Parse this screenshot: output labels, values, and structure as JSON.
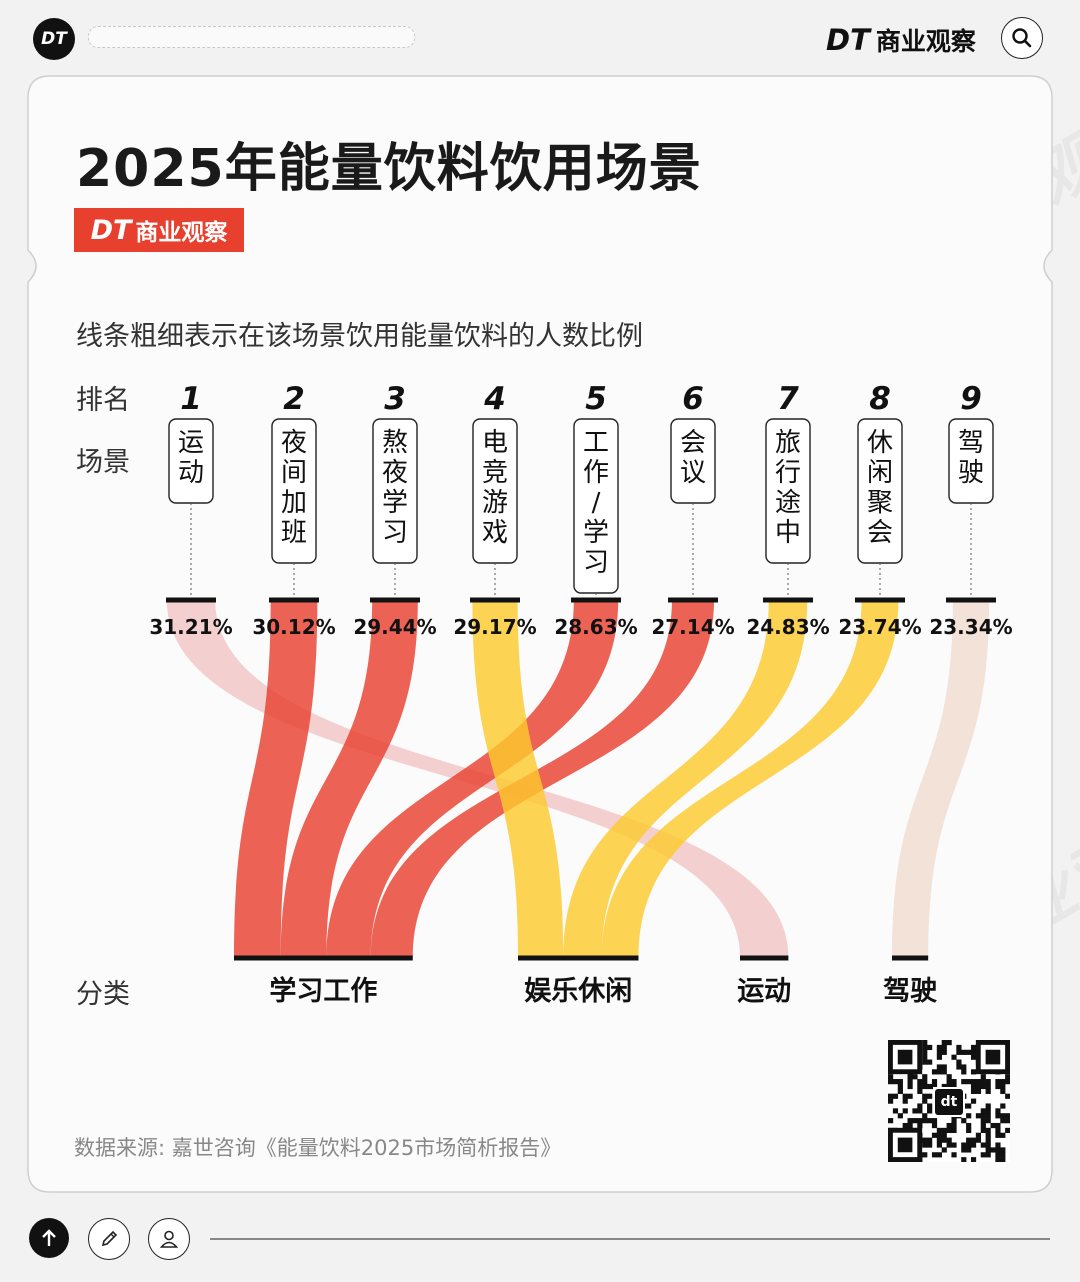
{
  "header": {
    "logo_text": "DT",
    "brand_dt": "DT",
    "brand_name": "商业观察"
  },
  "title": "2025年能量饮料饮用场景",
  "badge": {
    "dt": "DT",
    "name": "商业观察"
  },
  "subtitle": "线条粗细表示在该场景饮用能量饮料的人数比例",
  "labels": {
    "rank": "排名",
    "scene": "场景",
    "category": "分类"
  },
  "source": "数据来源: 嘉世咨询《能量饮料2025市场简析报告》",
  "qr_center": "dt",
  "watermark": "DT商业观察",
  "colors": {
    "study_work": "#e8412f",
    "leisure": "#fcc92d",
    "sport": "#f2c4c4",
    "driving": "#efdcd0"
  },
  "chart_data": {
    "type": "sankey",
    "title": "2025年能量饮料饮用场景",
    "value_unit": "%",
    "scenes": [
      {
        "rank": "1",
        "scene": "运动",
        "value": 31.21,
        "label": "31.21%",
        "category": "运动"
      },
      {
        "rank": "2",
        "scene": "夜间加班",
        "value": 30.12,
        "label": "30.12%",
        "category": "学习工作"
      },
      {
        "rank": "3",
        "scene": "熬夜学习",
        "value": 29.44,
        "label": "29.44%",
        "category": "学习工作"
      },
      {
        "rank": "4",
        "scene": "电竞游戏",
        "value": 29.17,
        "label": "29.17%",
        "category": "娱乐休闲"
      },
      {
        "rank": "5",
        "scene": "工作/学习",
        "value": 28.63,
        "label": "28.63%",
        "category": "学习工作"
      },
      {
        "rank": "6",
        "scene": "会议",
        "value": 27.14,
        "label": "27.14%",
        "category": "学习工作"
      },
      {
        "rank": "7",
        "scene": "旅行途中",
        "value": 24.83,
        "label": "24.83%",
        "category": "娱乐休闲"
      },
      {
        "rank": "8",
        "scene": "休闲聚会",
        "value": 23.74,
        "label": "23.74%",
        "category": "娱乐休闲"
      },
      {
        "rank": "9",
        "scene": "驾驶",
        "value": 23.34,
        "label": "23.34%",
        "category": "驾驶"
      }
    ],
    "categories": [
      {
        "name": "学习工作",
        "members": [
          "夜间加班",
          "熬夜学习",
          "工作/学习",
          "会议"
        ]
      },
      {
        "name": "娱乐休闲",
        "members": [
          "电竞游戏",
          "旅行途中",
          "休闲聚会"
        ]
      },
      {
        "name": "运动",
        "members": [
          "运动"
        ]
      },
      {
        "name": "驾驶",
        "members": [
          "驾驶"
        ]
      }
    ]
  }
}
